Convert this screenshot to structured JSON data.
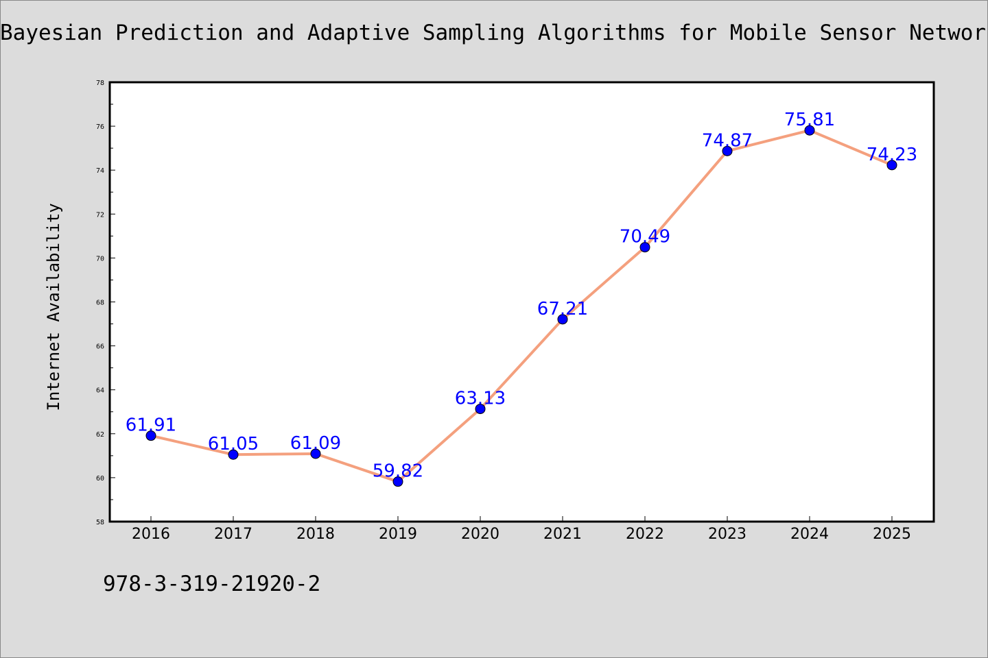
{
  "chart_data": {
    "type": "line",
    "title": "Bayesian Prediction and Adaptive Sampling Algorithms for Mobile Sensor Networks",
    "xlabel": "",
    "ylabel": "Internet Availability",
    "categories": [
      "2016",
      "2017",
      "2018",
      "2019",
      "2020",
      "2021",
      "2022",
      "2023",
      "2024",
      "2025"
    ],
    "series": [
      {
        "values": [
          61.91,
          61.05,
          61.09,
          59.82,
          63.13,
          67.21,
          70.49,
          74.87,
          75.81,
          74.23
        ],
        "labels": [
          "61.91",
          "61.05",
          "61.09",
          "59.82",
          "63.13",
          "67.21",
          "70.49",
          "74.87",
          "75.81",
          "74.23"
        ]
      }
    ],
    "ylim": [
      58,
      78
    ],
    "yticks": [
      "58",
      "60",
      "62",
      "64",
      "66",
      "68",
      "70",
      "72",
      "74",
      "76",
      "78"
    ],
    "grid": false,
    "colors": {
      "line": "#f4a07e",
      "marker": "#0000ff",
      "label": "#0000ff",
      "background": "#dcdcdc",
      "plot_background": "#ffffff"
    }
  },
  "footer": {
    "isbn": "978-3-319-21920-2"
  }
}
